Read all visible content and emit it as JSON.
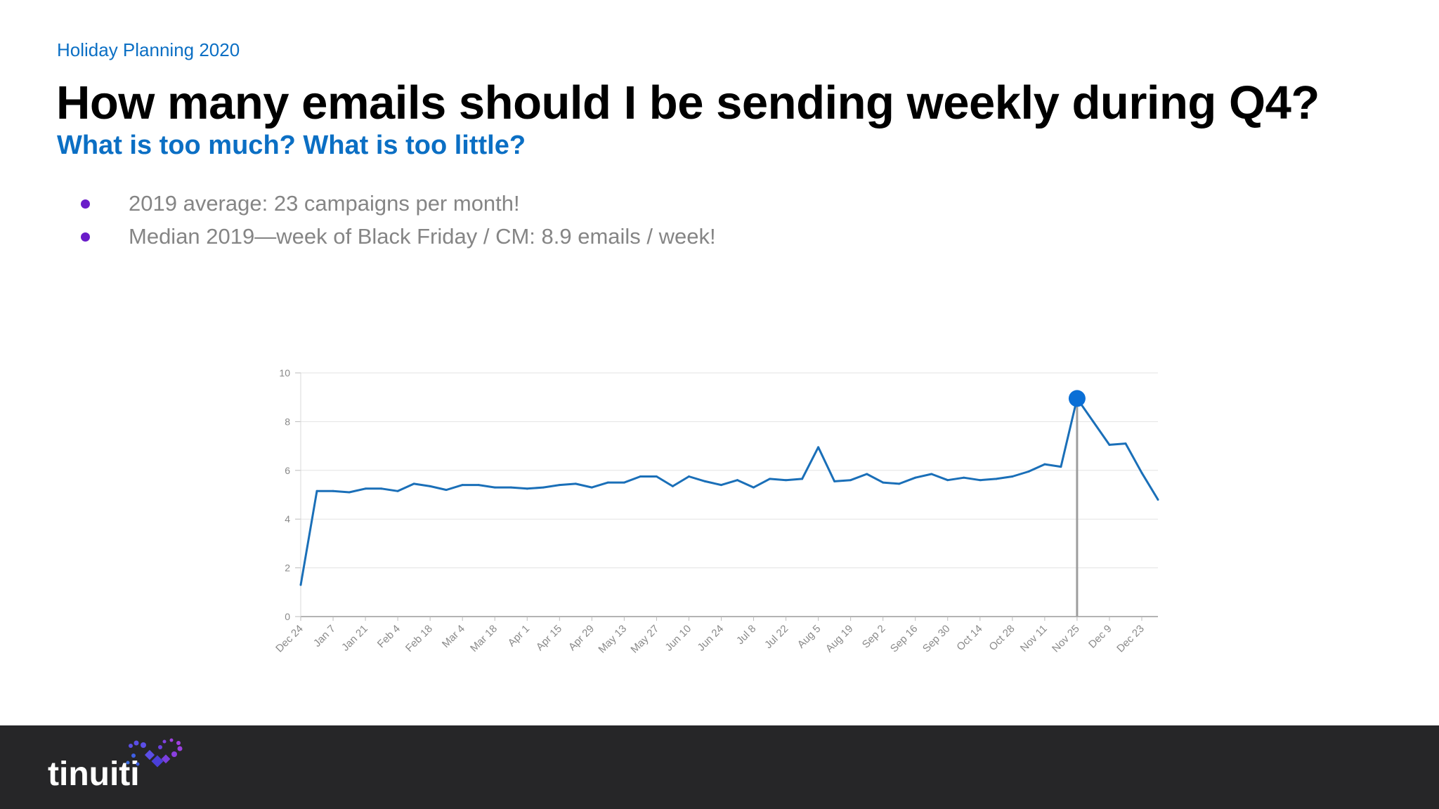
{
  "header": {
    "eyebrow": "Holiday Planning 2020",
    "title": "How many emails should I be sending weekly during Q4?",
    "subtitle": "What is too much? What is too little?"
  },
  "bullets": [
    {
      "text": "2019 average:  23 campaigns per month!"
    },
    {
      "text": "Median 2019—week of Black Friday / CM: 8.9 emails / week!"
    }
  ],
  "colors": {
    "accent_blue": "#0b6fc4",
    "line_blue": "#1a6fb8",
    "bullet_purple": "#6a1cc9",
    "footer_bg": "#262628"
  },
  "footer": {
    "logo_text": "tinuiti"
  },
  "chart_data": {
    "type": "line",
    "title": "",
    "xlabel": "",
    "ylabel": "",
    "ylim": [
      0,
      10
    ],
    "yticks": [
      0,
      2,
      4,
      6,
      8,
      10
    ],
    "grid": true,
    "x_tick_labels": [
      "Dec 24",
      "Jan 7",
      "Jan 21",
      "Feb 4",
      "Feb 18",
      "Mar 4",
      "Mar 18",
      "Apr 1",
      "Apr 15",
      "Apr 29",
      "May 13",
      "May 27",
      "Jun 10",
      "Jun 24",
      "Jul 8",
      "Jul 22",
      "Aug 5",
      "Aug 19",
      "Sep 2",
      "Sep 16",
      "Sep 30",
      "Oct 14",
      "Oct 28",
      "Nov 11",
      "Nov 25",
      "Dec 9",
      "Dec 23"
    ],
    "x_tick_every": 2,
    "series": [
      {
        "values": [
          1.3,
          5.15,
          5.15,
          5.1,
          5.25,
          5.25,
          5.15,
          5.45,
          5.35,
          5.2,
          5.4,
          5.4,
          5.3,
          5.3,
          5.25,
          5.3,
          5.4,
          5.45,
          5.3,
          5.5,
          5.5,
          5.75,
          5.75,
          5.35,
          5.75,
          5.55,
          5.4,
          5.6,
          5.3,
          5.65,
          5.6,
          5.65,
          6.95,
          5.55,
          5.6,
          5.85,
          5.5,
          5.45,
          5.7,
          5.85,
          5.6,
          5.7,
          5.6,
          5.65,
          5.75,
          5.95,
          6.25,
          6.15,
          8.95,
          8.0,
          7.05,
          7.1,
          5.9,
          4.8
        ]
      }
    ],
    "highlight": {
      "x_label": "Nov 25",
      "index": 48,
      "value": 8.95
    }
  }
}
